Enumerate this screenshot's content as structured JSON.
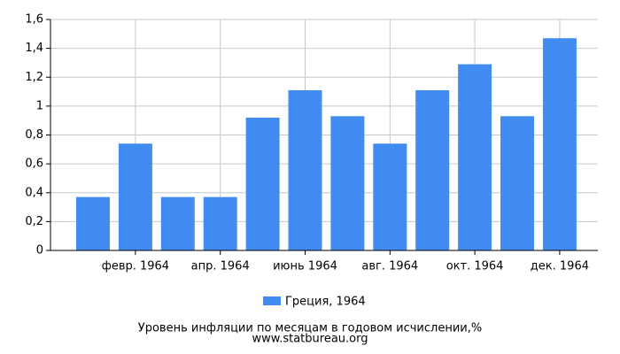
{
  "chart_data": {
    "type": "bar",
    "title": "Уровень инфляции по месяцам в годовом исчислении,%",
    "source": "www.statbureau.org",
    "categories": [
      null,
      "февр. 1964",
      null,
      "апр. 1964",
      null,
      "июнь 1964",
      null,
      "авг. 1964",
      null,
      "окт. 1964",
      null,
      "дек. 1964"
    ],
    "series": [
      {
        "name": "Греция, 1964",
        "color": "#418cf0",
        "values": [
          0.37,
          0.74,
          0.37,
          0.37,
          0.92,
          1.11,
          0.93,
          0.74,
          1.11,
          1.29,
          0.93,
          1.47
        ]
      }
    ],
    "ylim": [
      0,
      1.6
    ],
    "yticks": [
      0,
      {
        "value": 0.2,
        "label": "0,2"
      },
      {
        "value": 0.4,
        "label": "0,4"
      },
      {
        "value": 0.6,
        "label": "0,6"
      },
      {
        "value": 0.8,
        "label": "0,8"
      },
      1,
      {
        "value": 1.2,
        "label": "1,2"
      },
      {
        "value": 1.4,
        "label": "1,4"
      },
      {
        "value": 1.6,
        "label": "1,6"
      }
    ],
    "grid": true
  }
}
